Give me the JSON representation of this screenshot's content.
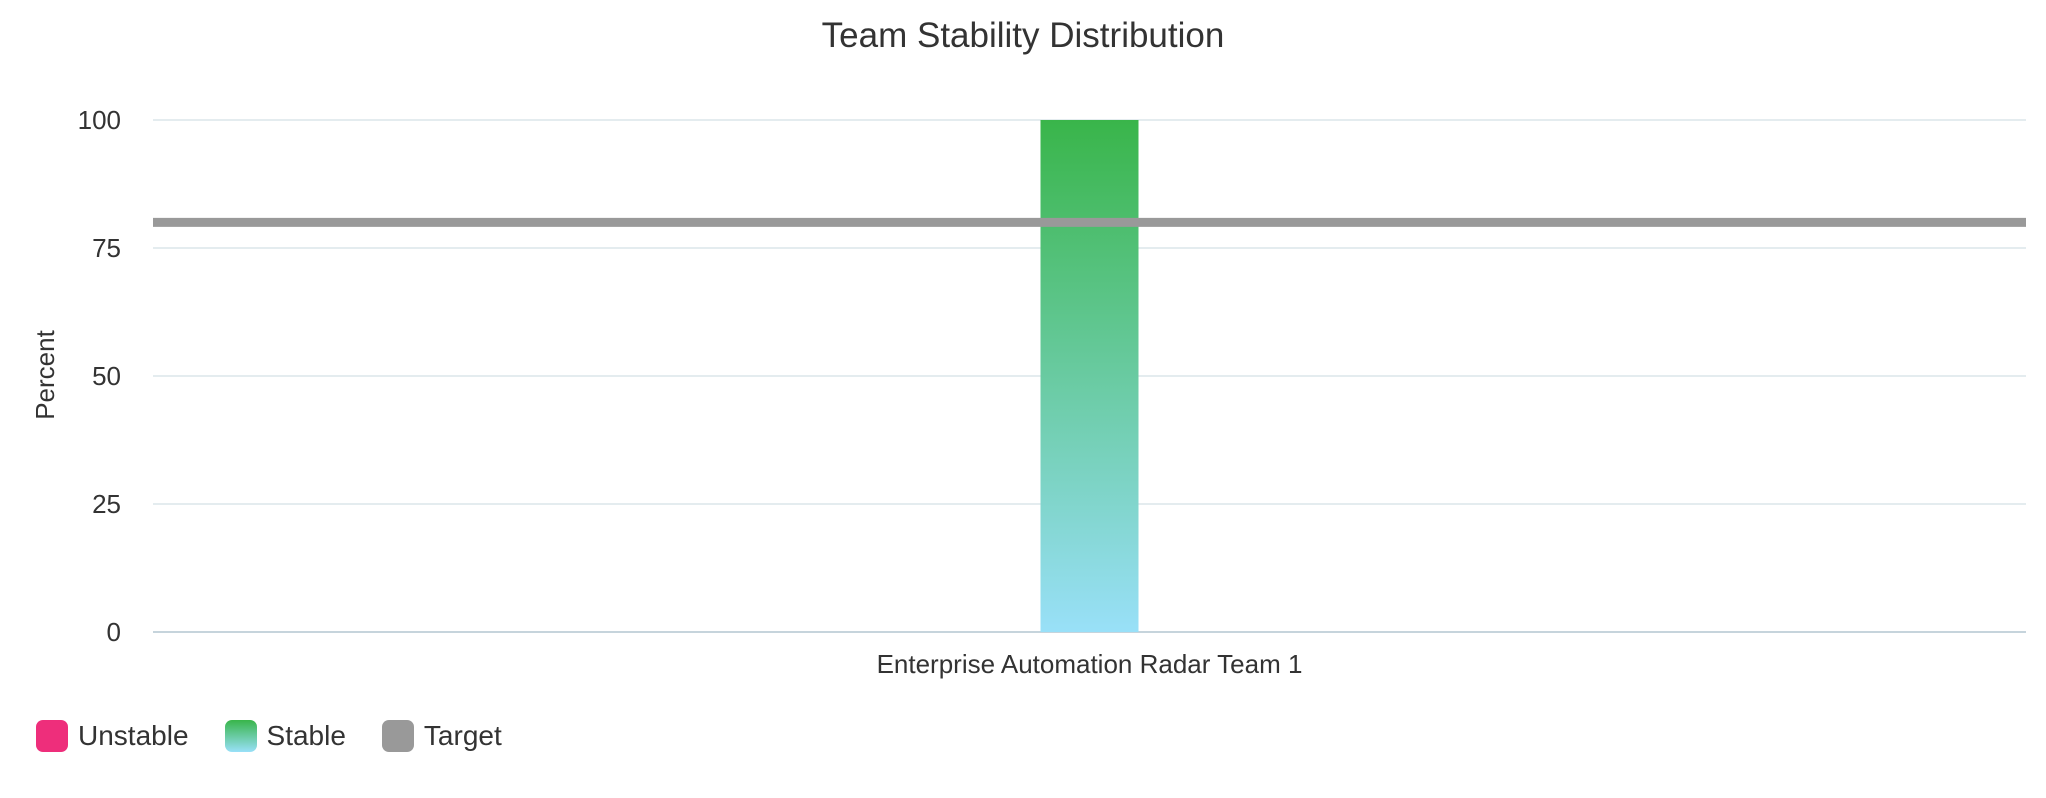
{
  "chart_data": {
    "type": "bar",
    "title": "Team Stability Distribution",
    "ylabel": "Percent",
    "xlabel": "",
    "ylim": [
      0,
      100
    ],
    "yticks": [
      0,
      25,
      50,
      75,
      100
    ],
    "grid": true,
    "categories": [
      "Enterprise Automation Radar Team 1"
    ],
    "series": [
      {
        "name": "Unstable",
        "values": [
          0
        ],
        "color": "#ee2e7b"
      },
      {
        "name": "Stable",
        "values": [
          100
        ],
        "color_top": "#39b54a",
        "color_bottom": "#99e0f8"
      }
    ],
    "target": {
      "name": "Target",
      "value": 80,
      "color": "#999999"
    },
    "legend_position": "bottom-left"
  },
  "legend": {
    "items": [
      {
        "label": "Unstable",
        "swatch": "#ee2e7b"
      },
      {
        "label": "Stable",
        "swatch_top": "#39b54a",
        "swatch_bottom": "#99e0f8"
      },
      {
        "label": "Target",
        "swatch": "#999999"
      }
    ]
  }
}
